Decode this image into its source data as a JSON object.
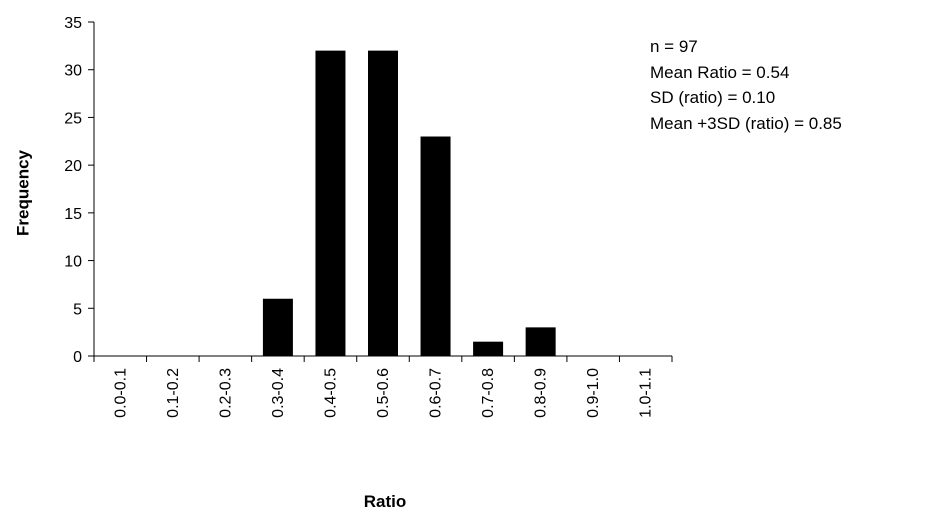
{
  "chart_data": {
    "type": "bar",
    "categories": [
      "0.0-0.1",
      "0.1-0.2",
      "0.2-0.3",
      "0.3-0.4",
      "0.4-0.5",
      "0.5-0.6",
      "0.6-0.7",
      "0.7-0.8",
      "0.8-0.9",
      "0.9-1.0",
      "1.0-1.1"
    ],
    "values": [
      0,
      0,
      0,
      6,
      32,
      32,
      23,
      1.5,
      3,
      0,
      0
    ],
    "xlabel": "Ratio",
    "ylabel": "Frequency",
    "ylim": [
      0,
      35
    ],
    "yticks": [
      0,
      5,
      10,
      15,
      20,
      25,
      30,
      35
    ],
    "grid": false,
    "bar_color": "#000000",
    "annotations": [
      "n = 97",
      "Mean Ratio = 0.54",
      "SD (ratio) = 0.10",
      "Mean +3SD (ratio) = 0.85"
    ]
  }
}
